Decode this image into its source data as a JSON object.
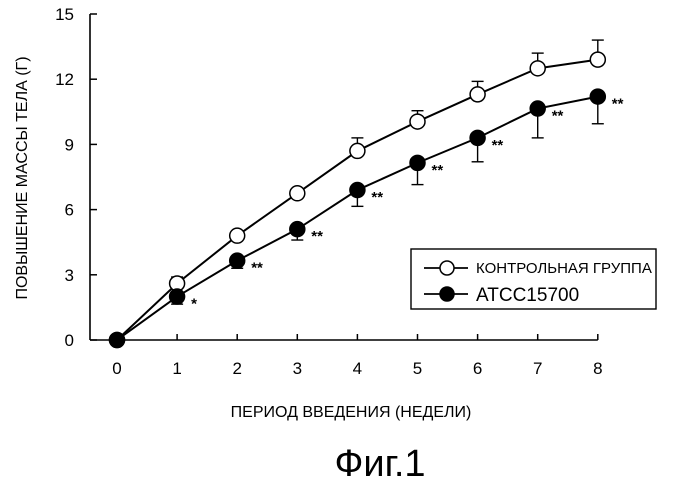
{
  "chart_data": {
    "type": "line",
    "x": [
      0,
      1,
      2,
      3,
      4,
      5,
      6,
      7,
      8
    ],
    "xlabel": "ПЕРИОД ВВЕДЕНИЯ (НЕДЕЛИ)",
    "ylabel": "ПОВЫШЕНИЕ МАССЫ ТЕЛА (Г)",
    "xlim": [
      0,
      8
    ],
    "ylim": [
      0,
      15
    ],
    "x_ticks": [
      "0",
      "1",
      "2",
      "3",
      "4",
      "5",
      "6",
      "7",
      "8"
    ],
    "y_ticks": [
      "0",
      "3",
      "6",
      "9",
      "12",
      "15"
    ],
    "grid": false,
    "legend_position": "lower-right",
    "series": [
      {
        "name": "КОНТРОЛЬНАЯ ГРУППА",
        "marker": "open-circle",
        "values": [
          0,
          2.6,
          4.8,
          6.75,
          8.7,
          10.05,
          11.3,
          12.5,
          12.9
        ],
        "error_up": [
          0,
          0.3,
          0,
          0,
          0.6,
          0.5,
          0.6,
          0.7,
          0.9
        ],
        "significance": [
          "",
          "",
          "",
          "",
          "",
          "",
          "",
          "",
          ""
        ]
      },
      {
        "name": "ATCC15700",
        "marker": "filled-circle",
        "values": [
          0,
          2.0,
          3.65,
          5.1,
          6.9,
          8.15,
          9.3,
          10.65,
          11.2
        ],
        "error_down": [
          0,
          0.35,
          0.35,
          0.5,
          0.75,
          1.0,
          1.1,
          1.35,
          1.25
        ],
        "significance": [
          "",
          "*",
          "**",
          "**",
          "**",
          "**",
          "**",
          "**",
          "**"
        ]
      }
    ]
  },
  "caption": "Фиг.1"
}
